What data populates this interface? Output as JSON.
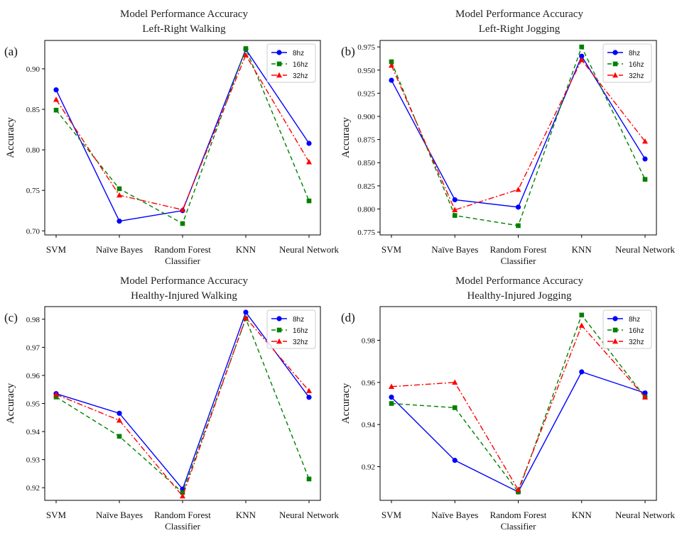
{
  "chart_data": [
    {
      "type": "line",
      "panel_label": "(a)",
      "title": [
        "Model Performance Accuracy",
        "Left-Right Walking"
      ],
      "ylabel": "Accuracy",
      "categories": [
        "SVM",
        "Naïve Bayes",
        "Random Forest Classifier",
        "KNN",
        "Neural Network"
      ],
      "category_lines": [
        [
          "SVM"
        ],
        [
          "Naïve Bayes"
        ],
        [
          "Random Forest",
          "Classifier"
        ],
        [
          "KNN"
        ],
        [
          "Neural Network"
        ]
      ],
      "ylim": [
        0.695,
        0.935
      ],
      "yticks": [
        0.7,
        0.75,
        0.8,
        0.85,
        0.9
      ],
      "ytick_labels": [
        "0.70",
        "0.75",
        "0.80",
        "0.85",
        "0.90"
      ],
      "legend_position": "top-right",
      "series": [
        {
          "name": "8hz",
          "color": "#0000ff",
          "marker": "circle",
          "dash": "solid",
          "values": [
            0.874,
            0.712,
            0.725,
            0.924,
            0.808
          ]
        },
        {
          "name": "16hz",
          "color": "#008000",
          "marker": "square",
          "dash": "dashed",
          "values": [
            0.849,
            0.752,
            0.709,
            0.925,
            0.737
          ]
        },
        {
          "name": "32hz",
          "color": "#ff0000",
          "marker": "triangle",
          "dash": "dashdot",
          "values": [
            0.862,
            0.744,
            0.726,
            0.917,
            0.785
          ]
        }
      ]
    },
    {
      "type": "line",
      "panel_label": "(b)",
      "title": [
        "Model Performance Accuracy",
        "Left-Right Jogging"
      ],
      "ylabel": "Accuracy",
      "categories": [
        "SVM",
        "Naïve Bayes",
        "Random Forest Classifier",
        "KNN",
        "Neural Network"
      ],
      "category_lines": [
        [
          "SVM"
        ],
        [
          "Naïve Bayes"
        ],
        [
          "Random Forest",
          "Classifier"
        ],
        [
          "KNN"
        ],
        [
          "Neural Network"
        ]
      ],
      "ylim": [
        0.772,
        0.982
      ],
      "yticks": [
        0.775,
        0.8,
        0.825,
        0.85,
        0.875,
        0.9,
        0.925,
        0.95,
        0.975
      ],
      "ytick_labels": [
        "0.775",
        "0.800",
        "0.825",
        "0.850",
        "0.875",
        "0.900",
        "0.925",
        "0.950",
        "0.975"
      ],
      "legend_position": "top-right",
      "series": [
        {
          "name": "8hz",
          "color": "#0000ff",
          "marker": "circle",
          "dash": "solid",
          "values": [
            0.939,
            0.81,
            0.802,
            0.965,
            0.854
          ]
        },
        {
          "name": "16hz",
          "color": "#008000",
          "marker": "square",
          "dash": "dashed",
          "values": [
            0.959,
            0.793,
            0.782,
            0.975,
            0.832
          ]
        },
        {
          "name": "32hz",
          "color": "#ff0000",
          "marker": "triangle",
          "dash": "dashdot",
          "values": [
            0.955,
            0.799,
            0.821,
            0.961,
            0.873
          ]
        }
      ]
    },
    {
      "type": "line",
      "panel_label": "(c)",
      "title": [
        "Model Performance Accuracy",
        "Healthy-Injured Walking"
      ],
      "ylabel": "Accuracy",
      "categories": [
        "SVM",
        "Naïve Bayes",
        "Random Forest Classifier",
        "KNN",
        "Neural Network"
      ],
      "category_lines": [
        [
          "SVM"
        ],
        [
          "Naïve Bayes"
        ],
        [
          "Random Forest",
          "Classifier"
        ],
        [
          "KNN"
        ],
        [
          "Neural Network"
        ]
      ],
      "ylim": [
        0.9155,
        0.9845
      ],
      "yticks": [
        0.92,
        0.93,
        0.94,
        0.95,
        0.96,
        0.97,
        0.98
      ],
      "ytick_labels": [
        "0.92",
        "0.93",
        "0.94",
        "0.95",
        "0.96",
        "0.97",
        "0.98"
      ],
      "legend_position": "top-right",
      "series": [
        {
          "name": "8hz",
          "color": "#0000ff",
          "marker": "circle",
          "dash": "solid",
          "values": [
            0.9535,
            0.9465,
            0.9195,
            0.9825,
            0.9522
          ]
        },
        {
          "name": "16hz",
          "color": "#008000",
          "marker": "square",
          "dash": "dashed",
          "values": [
            0.9523,
            0.9383,
            0.9183,
            0.9802,
            0.9231
          ]
        },
        {
          "name": "32hz",
          "color": "#ff0000",
          "marker": "triangle",
          "dash": "dashdot",
          "values": [
            0.9532,
            0.944,
            0.917,
            0.9805,
            0.9545
          ]
        }
      ]
    },
    {
      "type": "line",
      "panel_label": "(d)",
      "title": [
        "Model Performance Accuracy",
        "Healthy-Injured Jogging"
      ],
      "ylabel": "Accuracy",
      "categories": [
        "SVM",
        "Naïve Bayes",
        "Random Forest Classifier",
        "KNN",
        "Neural Network"
      ],
      "category_lines": [
        [
          "SVM"
        ],
        [
          "Naïve Bayes"
        ],
        [
          "Random Forest",
          "Classifier"
        ],
        [
          "KNN"
        ],
        [
          "Neural Network"
        ]
      ],
      "ylim": [
        0.904,
        0.996
      ],
      "yticks": [
        0.92,
        0.94,
        0.96,
        0.98
      ],
      "ytick_labels": [
        "0.92",
        "0.94",
        "0.96",
        "0.98"
      ],
      "legend_position": "top-right",
      "series": [
        {
          "name": "8hz",
          "color": "#0000ff",
          "marker": "circle",
          "dash": "solid",
          "values": [
            0.953,
            0.923,
            0.908,
            0.965,
            0.955
          ]
        },
        {
          "name": "16hz",
          "color": "#008000",
          "marker": "square",
          "dash": "dashed",
          "values": [
            0.95,
            0.948,
            0.908,
            0.992,
            0.953
          ]
        },
        {
          "name": "32hz",
          "color": "#ff0000",
          "marker": "triangle",
          "dash": "dashdot",
          "values": [
            0.958,
            0.96,
            0.909,
            0.987,
            0.953
          ]
        }
      ]
    }
  ]
}
